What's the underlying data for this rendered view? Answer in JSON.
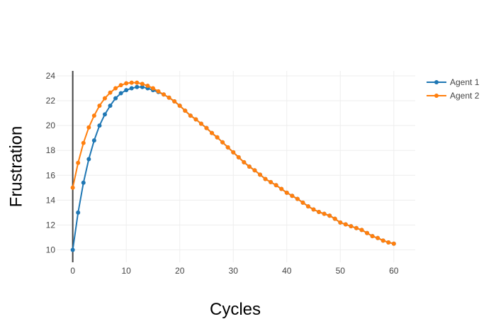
{
  "chart_data": {
    "type": "line",
    "title": "",
    "xlabel": "Cycles",
    "ylabel": "Frustration",
    "xlim": [
      -3,
      64
    ],
    "ylim": [
      9,
      24.4
    ],
    "x_ticks": [
      0,
      10,
      20,
      30,
      40,
      50,
      60
    ],
    "y_ticks": [
      10,
      12,
      14,
      16,
      18,
      20,
      22,
      24
    ],
    "grid": true,
    "legend_position": "top-right",
    "series": [
      {
        "name": "Agent 1",
        "color": "#1f77b4",
        "x": [
          0,
          1,
          2,
          3,
          4,
          5,
          6,
          7,
          8,
          9,
          10,
          11,
          12,
          13,
          14,
          15,
          16,
          17,
          18,
          19,
          20,
          21,
          22,
          23,
          24,
          25,
          26,
          27,
          28,
          29,
          30,
          31,
          32,
          33,
          34,
          35,
          36,
          37,
          38,
          39,
          40,
          41,
          42,
          43,
          44,
          45,
          46,
          47,
          48,
          49,
          50,
          51,
          52,
          53,
          54,
          55,
          56,
          57,
          58,
          59,
          60
        ],
        "y": [
          10,
          13,
          15.4,
          17.3,
          18.8,
          20,
          20.9,
          21.6,
          22.2,
          22.6,
          22.85,
          23,
          23.1,
          23.1,
          23,
          22.85,
          22.7,
          22.5,
          22.25,
          21.95,
          21.6,
          21.2,
          20.8,
          20.5,
          20.15,
          19.8,
          19.4,
          19.05,
          18.65,
          18.25,
          17.85,
          17.45,
          17.05,
          16.7,
          16.4,
          16.05,
          15.7,
          15.45,
          15.2,
          14.9,
          14.6,
          14.35,
          14.1,
          13.8,
          13.5,
          13.25,
          13.05,
          12.9,
          12.75,
          12.5,
          12.2,
          12.05,
          11.9,
          11.75,
          11.6,
          11.35,
          11.1,
          10.95,
          10.75,
          10.6,
          10.5
        ]
      },
      {
        "name": "Agent 2",
        "color": "#ff7f0e",
        "x": [
          0,
          1,
          2,
          3,
          4,
          5,
          6,
          7,
          8,
          9,
          10,
          11,
          12,
          13,
          14,
          15,
          16,
          17,
          18,
          19,
          20,
          21,
          22,
          23,
          24,
          25,
          26,
          27,
          28,
          29,
          30,
          31,
          32,
          33,
          34,
          35,
          36,
          37,
          38,
          39,
          40,
          41,
          42,
          43,
          44,
          45,
          46,
          47,
          48,
          49,
          50,
          51,
          52,
          53,
          54,
          55,
          56,
          57,
          58,
          59,
          60
        ],
        "y": [
          15,
          17,
          18.6,
          19.85,
          20.8,
          21.6,
          22.2,
          22.65,
          23,
          23.25,
          23.4,
          23.45,
          23.45,
          23.35,
          23.2,
          23,
          22.75,
          22.5,
          22.25,
          21.95,
          21.6,
          21.2,
          20.8,
          20.5,
          20.15,
          19.8,
          19.4,
          19.05,
          18.65,
          18.25,
          17.85,
          17.45,
          17.05,
          16.7,
          16.4,
          16.05,
          15.7,
          15.45,
          15.2,
          14.9,
          14.6,
          14.35,
          14.1,
          13.8,
          13.5,
          13.25,
          13.05,
          12.9,
          12.75,
          12.5,
          12.2,
          12.05,
          11.9,
          11.75,
          11.6,
          11.35,
          11.1,
          10.95,
          10.75,
          10.6,
          10.5
        ]
      }
    ]
  }
}
